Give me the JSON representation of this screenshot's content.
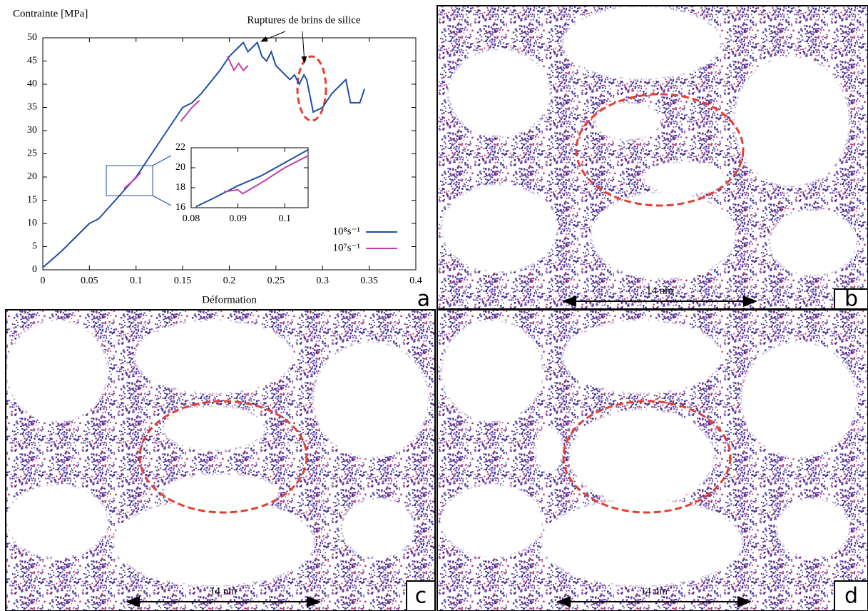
{
  "chart_data": [
    {
      "type": "line",
      "y_label": "Contrainte [MPa]",
      "x_label": "Déformation",
      "annotation": "Ruptures de brins de silice",
      "panel": "a",
      "legend": "right",
      "xlim": [
        0,
        0.4
      ],
      "ylim": [
        0,
        50
      ],
      "xticks": [
        0,
        0.05,
        0.1,
        0.15,
        0.2,
        0.25,
        0.3,
        0.35,
        0.4
      ],
      "yticks": [
        0,
        5,
        10,
        15,
        20,
        25,
        30,
        35,
        40,
        45,
        50
      ],
      "series": [
        {
          "name": "10⁸s⁻¹",
          "color": "#1f4fa8",
          "x": [
            0,
            0.02,
            0.05,
            0.06,
            0.08,
            0.1,
            0.12,
            0.14,
            0.15,
            0.16,
            0.17,
            0.19,
            0.2,
            0.21,
            0.215,
            0.22,
            0.225,
            0.23,
            0.235,
            0.24,
            0.245,
            0.25,
            0.26,
            0.265,
            0.27,
            0.275,
            0.28,
            0.283,
            0.29,
            0.3,
            0.31,
            0.32,
            0.325,
            0.33,
            0.34,
            0.345
          ],
          "values": [
            0.5,
            4,
            10,
            11,
            15.5,
            20,
            26,
            32,
            35,
            36,
            38,
            43,
            46,
            48,
            49,
            47,
            48,
            49,
            46,
            45,
            47,
            44,
            42,
            41,
            42,
            40,
            42,
            41,
            34,
            35,
            38,
            40,
            41,
            36,
            36,
            39
          ]
        },
        {
          "name": "10⁷s⁻¹",
          "color": "#c040b0",
          "x": [
            0.087,
            0.1,
            0.105,
            0.13,
            0.148,
            0.16,
            0.168,
            0.18,
            0.198,
            0.205,
            0.21,
            0.215,
            0.22
          ],
          "values": [
            17.5,
            19.8,
            21,
            null,
            32,
            35,
            36.5,
            null,
            46,
            43,
            44.5,
            43,
            44
          ]
        }
      ]
    },
    {
      "type": "line",
      "xlim": [
        0.08,
        0.105
      ],
      "ylim": [
        16,
        22
      ],
      "xticks": [
        0.08,
        0.09,
        0.1
      ],
      "yticks": [
        16,
        18,
        20,
        22
      ],
      "series": [
        {
          "color": "#1f4fa8",
          "x": [
            0.081,
            0.085,
            0.09,
            0.095,
            0.1,
            0.105
          ],
          "values": [
            16.1,
            17,
            18.2,
            19.2,
            20.5,
            21.8
          ]
        },
        {
          "color": "#c040b0",
          "x": [
            0.087,
            0.09,
            0.091,
            0.095,
            0.1,
            0.105
          ],
          "values": [
            17.6,
            17.8,
            17.4,
            18.5,
            20,
            21.2
          ]
        }
      ]
    }
  ],
  "panels": {
    "labels": [
      "b",
      "c",
      "d"
    ],
    "scale_bar": "14 nm"
  }
}
